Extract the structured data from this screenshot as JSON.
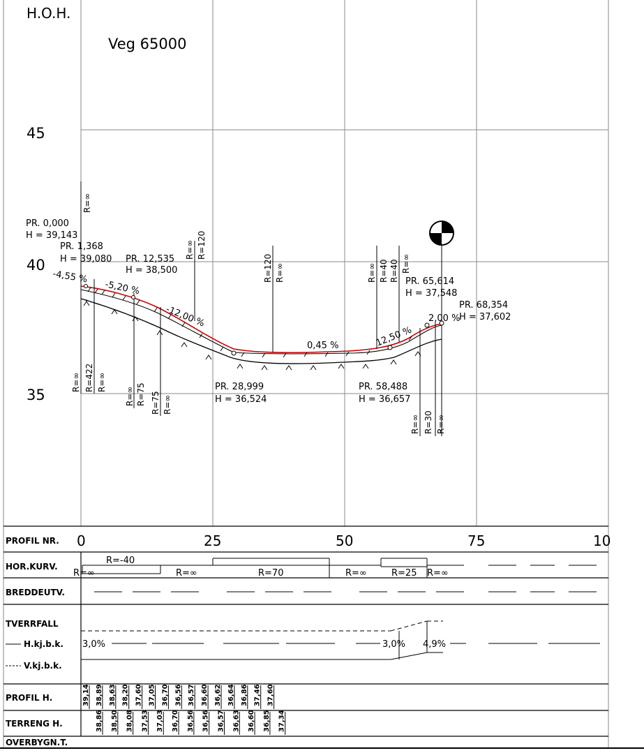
{
  "header": {
    "axis_title": "H.O.H.",
    "road_name": "Veg 65000"
  },
  "elevation_axis": [
    "45",
    "40",
    "35"
  ],
  "profile": {
    "points": [
      {
        "pr": "PR. 0,000",
        "h": "H = 39,143"
      },
      {
        "pr": "PR. 1,368",
        "h": "H = 39,080"
      },
      {
        "pr": "PR. 12,535",
        "h": "H = 38,500"
      },
      {
        "pr": "PR. 28,999",
        "h": "H = 36,524"
      },
      {
        "pr": "PR. 58,488",
        "h": "H = 36,657"
      },
      {
        "pr": "PR. 65,614",
        "h": "H = 37,548"
      },
      {
        "pr": "PR. 68,354",
        "h": "H = 37,602"
      }
    ],
    "grades": [
      "-4,55 %",
      "-5,20 %",
      "-12,00 %",
      "0,45 %",
      "12,50 %",
      "2,00 %"
    ],
    "curve_labels": [
      "R=∞",
      "R=∞",
      "R=422",
      "R=∞",
      "R=∞",
      "R=75",
      "R=75",
      "R=∞",
      "R=∞",
      "R=120",
      "R=120",
      "R=∞",
      "R=∞",
      "R=40",
      "R=40",
      "R=∞",
      "R=∞",
      "R=30",
      "R=∞"
    ]
  },
  "band": {
    "profil_nr_label": "PROFIL  NR.",
    "profil_nr_ticks": [
      "0",
      "25",
      "50",
      "75",
      "10"
    ],
    "hor_kurv_label": "HOR.KURV.",
    "hor_kurv_values": [
      "R=-40",
      "R=∞",
      "R=∞",
      "R=70",
      "R=∞",
      "R=25",
      "R=∞"
    ],
    "breddeutv_label": "BREDDEUTV.",
    "tverrfall_label": "TVERRFALL",
    "hkj_label": "H.kj.b.k.",
    "vkj_label": "V.kj.b.k.",
    "tverrfall_values": [
      "3,0%",
      "3,0%",
      "4,9%"
    ],
    "profil_h_label": "PROFIL  H.",
    "profil_h_values": [
      "39,14",
      "38,89",
      "38,63",
      "38,20",
      "37,60",
      "37,05",
      "36,70",
      "36,56",
      "36,57",
      "36,60",
      "36,62",
      "36,64",
      "36,86",
      "37,46",
      "37,60"
    ],
    "terreng_h_label": "TERRENG  H.",
    "terreng_h_values": [
      "38,86",
      "38,50",
      "38,08",
      "37,53",
      "37,03",
      "36,70",
      "36,56",
      "36,56",
      "36,57",
      "36,63",
      "36,60",
      "36,85",
      "37,34"
    ],
    "overbygn_label": "OVERBYGN.T."
  },
  "colors": {
    "design_line": "#cc0000",
    "ink": "#000000",
    "grid": "#888888"
  }
}
